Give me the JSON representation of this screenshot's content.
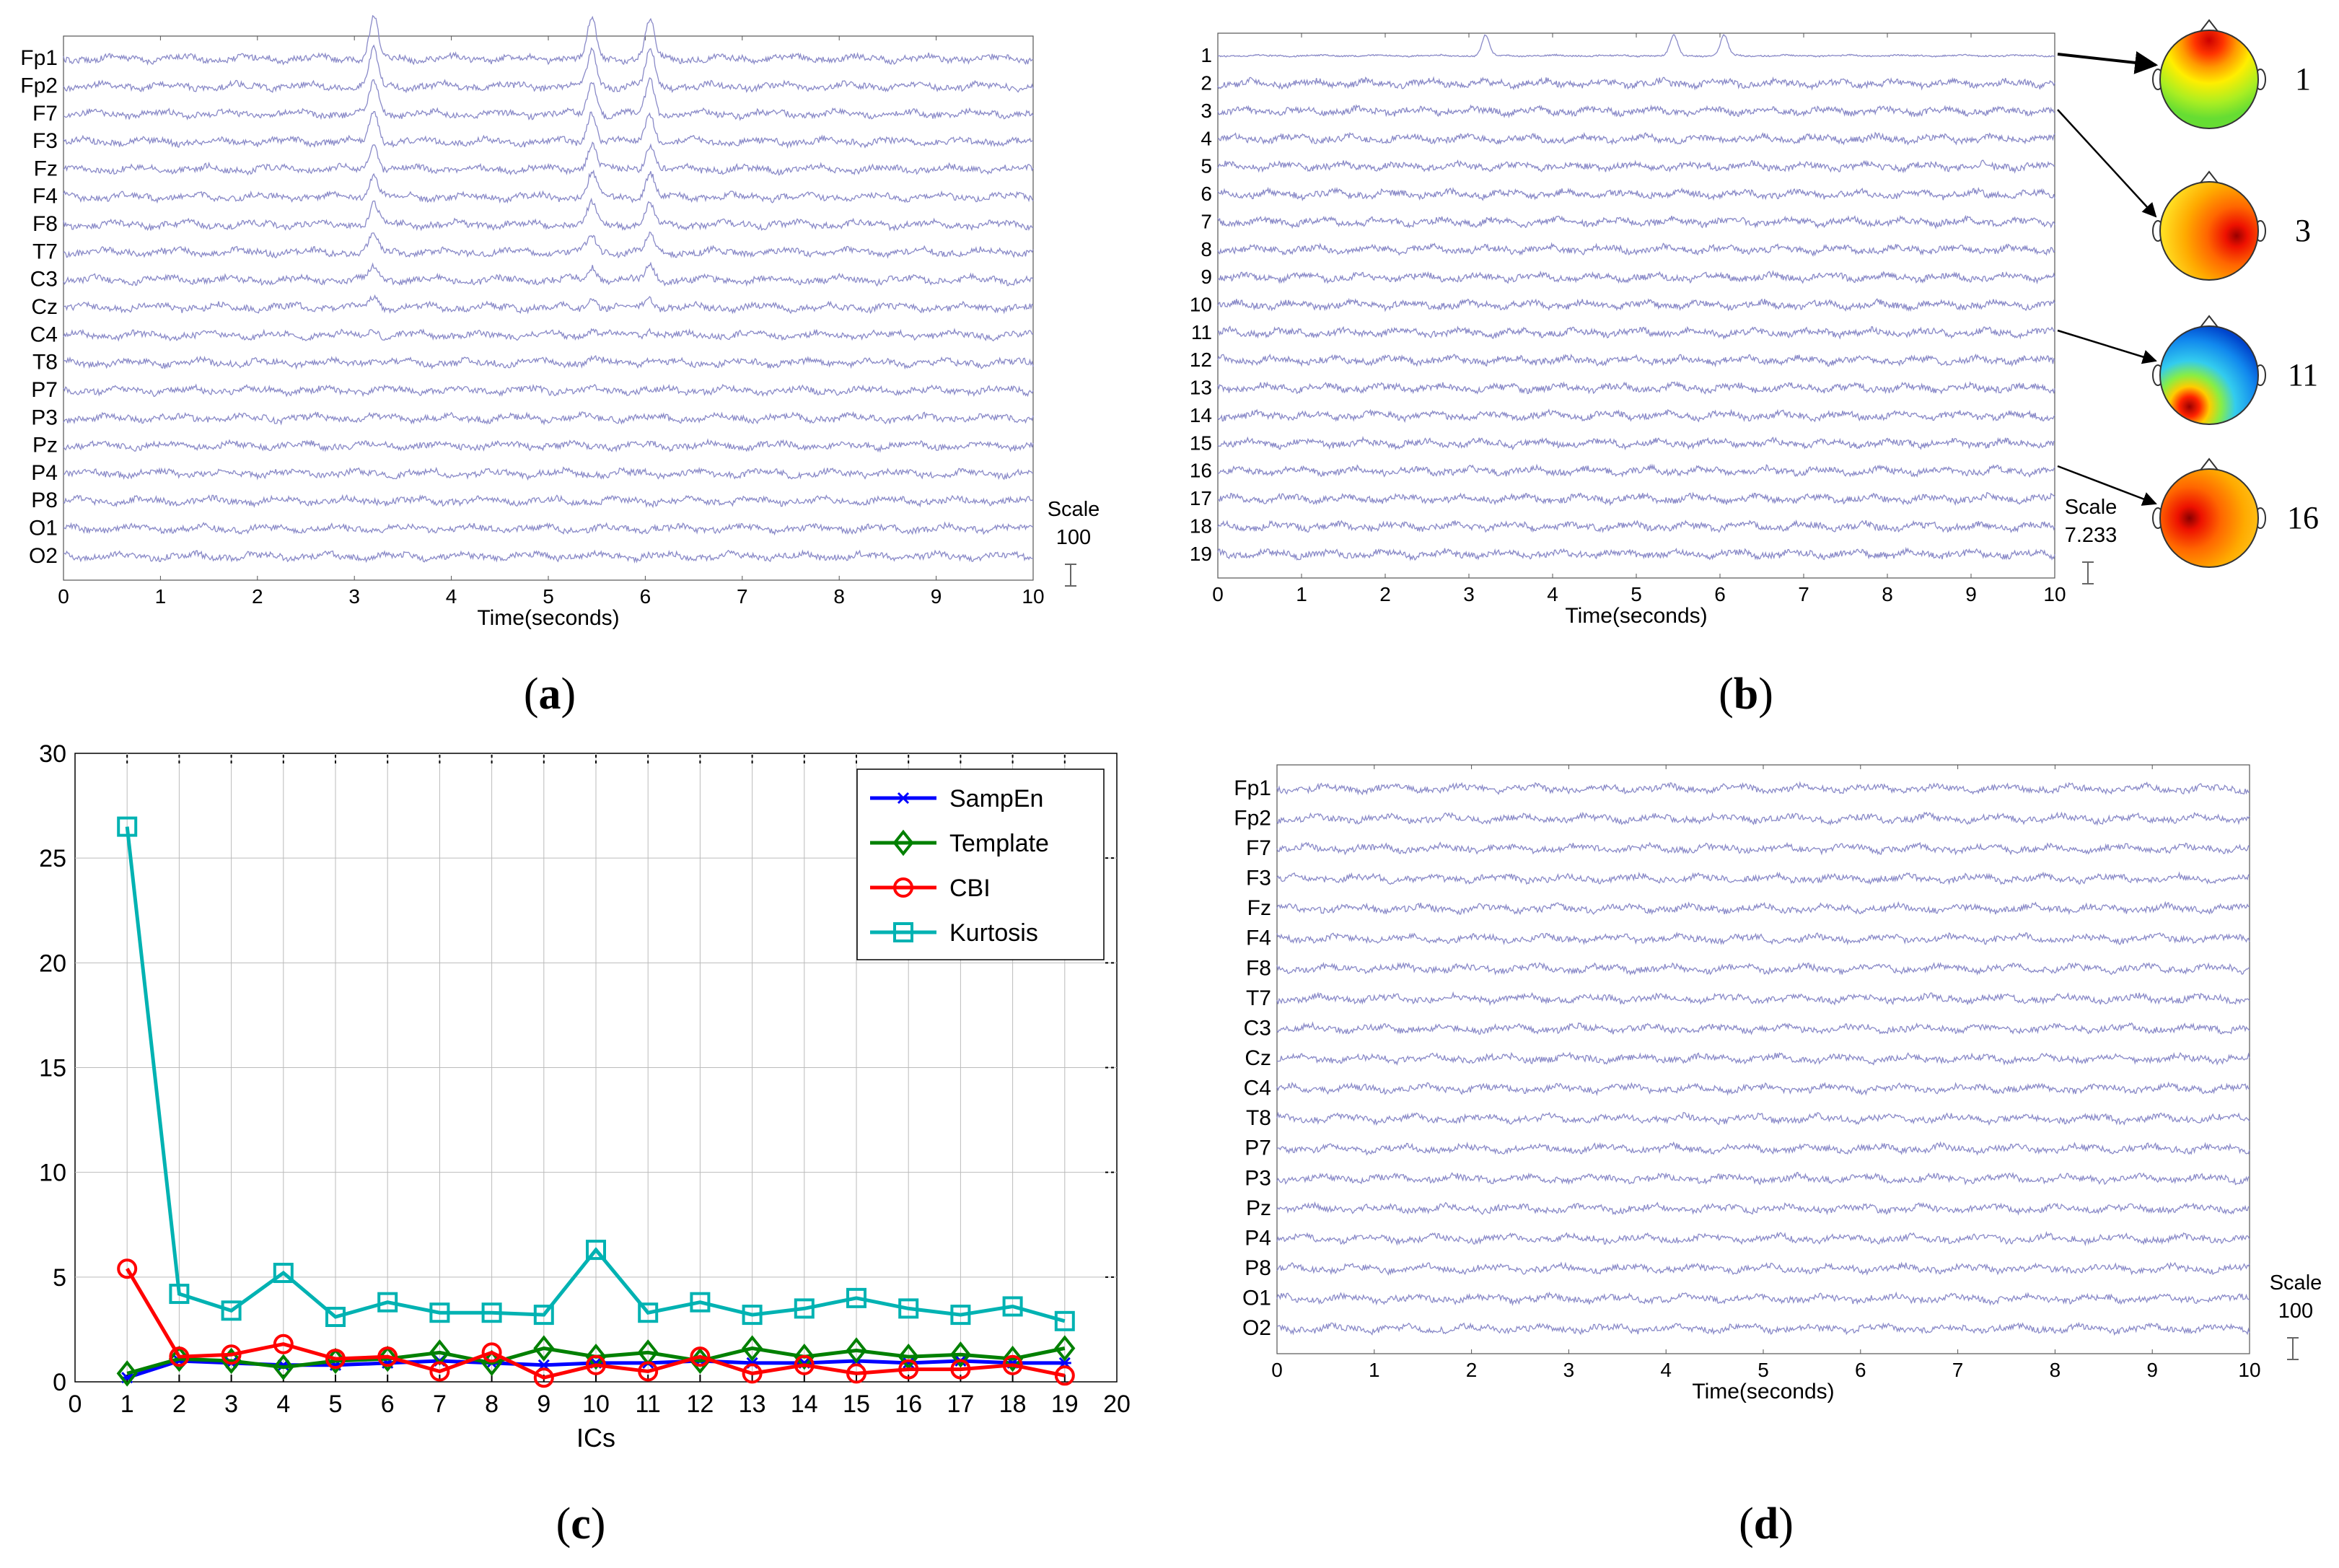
{
  "chart_data": [
    {
      "panel": "a",
      "type": "line",
      "description_label": "(a)",
      "panel_label": {
        "open": "(",
        "letter": "a",
        "close": ")"
      },
      "channels": [
        "Fp1",
        "Fp2",
        "F7",
        "F3",
        "Fz",
        "F4",
        "F8",
        "T7",
        "C3",
        "Cz",
        "C4",
        "T8",
        "P7",
        "P3",
        "Pz",
        "P4",
        "P8",
        "O1",
        "O2"
      ],
      "xlabel": "Time(seconds)",
      "xticks": [
        "0",
        "1",
        "2",
        "3",
        "4",
        "5",
        "6",
        "7",
        "8",
        "9",
        "10"
      ],
      "xlim": [
        0,
        10
      ],
      "scale_label": "Scale",
      "scale_value": "100",
      "spikes": [
        3.2,
        5.45,
        6.05
      ],
      "trace_color": "#8a8ac8"
    },
    {
      "panel": "b",
      "type": "line",
      "panel_label": {
        "open": "(",
        "letter": "b",
        "close": ")"
      },
      "channels": [
        "1",
        "2",
        "3",
        "4",
        "5",
        "6",
        "7",
        "8",
        "9",
        "10",
        "11",
        "12",
        "13",
        "14",
        "15",
        "16",
        "17",
        "18",
        "19"
      ],
      "xlabel": "Time(seconds)",
      "xticks": [
        "0",
        "1",
        "2",
        "3",
        "4",
        "5",
        "6",
        "7",
        "8",
        "9",
        "10"
      ],
      "xlim": [
        0,
        10
      ],
      "scale_label": "Scale",
      "scale_value": "7.233",
      "spikes": [
        3.2,
        5.45,
        6.05
      ],
      "topomaps": [
        {
          "component": "1",
          "label": "1"
        },
        {
          "component": "3",
          "label": "3"
        },
        {
          "component": "11",
          "label": "11"
        },
        {
          "component": "16",
          "label": "16"
        }
      ],
      "trace_color": "#8a8ac8"
    },
    {
      "panel": "c",
      "type": "line",
      "panel_label": {
        "open": "(",
        "letter": "c",
        "close": ")"
      },
      "xlabel": "ICs",
      "ylabel": "",
      "xlim": [
        0,
        20
      ],
      "ylim": [
        0,
        30
      ],
      "xticks": [
        "0",
        "1",
        "2",
        "3",
        "4",
        "5",
        "6",
        "7",
        "8",
        "9",
        "10",
        "11",
        "12",
        "13",
        "14",
        "15",
        "16",
        "17",
        "18",
        "19",
        "20"
      ],
      "yticks": [
        "0",
        "5",
        "10",
        "15",
        "20",
        "25",
        "30"
      ],
      "grid": true,
      "legend_position": "top-right",
      "x": [
        1,
        2,
        3,
        4,
        5,
        6,
        7,
        8,
        9,
        10,
        11,
        12,
        13,
        14,
        15,
        16,
        17,
        18,
        19
      ],
      "series": [
        {
          "name": "SampEn",
          "color": "#0000ff",
          "marker": "star",
          "values": [
            0.2,
            1.0,
            0.9,
            0.8,
            0.8,
            0.9,
            1.0,
            0.9,
            0.8,
            0.9,
            0.9,
            1.0,
            0.9,
            0.9,
            1.0,
            0.9,
            1.0,
            0.9,
            0.9
          ]
        },
        {
          "name": "Template",
          "color": "#008000",
          "marker": "diamond",
          "values": [
            0.4,
            1.1,
            1.0,
            0.7,
            1.0,
            1.1,
            1.4,
            0.9,
            1.6,
            1.2,
            1.4,
            1.0,
            1.6,
            1.2,
            1.5,
            1.2,
            1.3,
            1.1,
            1.6
          ]
        },
        {
          "name": "CBI",
          "color": "#ff0000",
          "marker": "circle",
          "values": [
            5.4,
            1.2,
            1.3,
            1.8,
            1.1,
            1.2,
            0.5,
            1.4,
            0.2,
            0.8,
            0.5,
            1.2,
            0.4,
            0.8,
            0.4,
            0.6,
            0.6,
            0.8,
            0.3
          ]
        },
        {
          "name": "Kurtosis",
          "color": "#00b2b2",
          "marker": "square",
          "values": [
            26.5,
            4.2,
            3.4,
            5.2,
            3.1,
            3.8,
            3.3,
            3.3,
            3.2,
            6.3,
            3.3,
            3.8,
            3.2,
            3.5,
            4.0,
            3.5,
            3.2,
            3.6,
            2.9
          ]
        }
      ]
    },
    {
      "panel": "d",
      "type": "line",
      "panel_label": {
        "open": "(",
        "letter": "d",
        "close": ")"
      },
      "channels": [
        "Fp1",
        "Fp2",
        "F7",
        "F3",
        "Fz",
        "F4",
        "F8",
        "T7",
        "C3",
        "Cz",
        "C4",
        "T8",
        "P7",
        "P3",
        "Pz",
        "P4",
        "P8",
        "O1",
        "O2"
      ],
      "xlabel": "Time(seconds)",
      "xticks": [
        "0",
        "1",
        "2",
        "3",
        "4",
        "5",
        "6",
        "7",
        "8",
        "9",
        "10"
      ],
      "xlim": [
        0,
        10
      ],
      "scale_label": "Scale",
      "scale_value": "100",
      "spikes": [],
      "trace_color": "#8a8ac8"
    }
  ]
}
